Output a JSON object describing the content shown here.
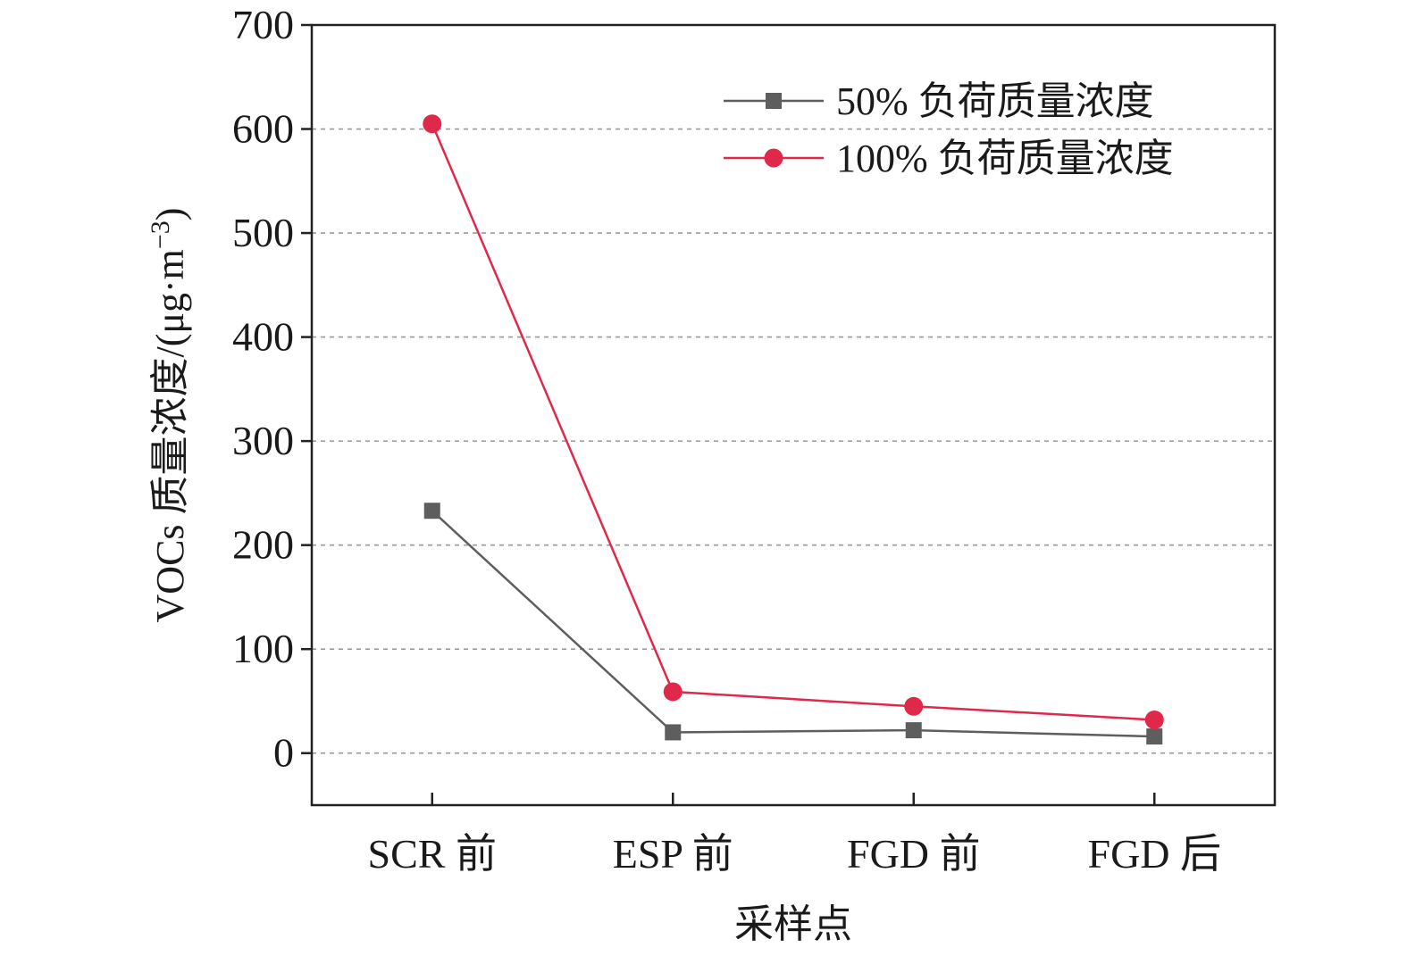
{
  "chart_data": {
    "type": "line",
    "categories": [
      "SCR 前",
      "ESP 前",
      "FGD 前",
      "FGD 后"
    ],
    "series": [
      {
        "name": "50% 负荷质量浓度",
        "color": "#5e5e5e",
        "marker": "square",
        "values": [
          233,
          20,
          22,
          16
        ]
      },
      {
        "name": "100% 负荷质量浓度",
        "color": "#e0294a",
        "marker": "circle",
        "values": [
          605,
          59,
          45,
          32
        ]
      }
    ],
    "xlabel": "采样点",
    "ylabel": "VOCs 质量浓度/(μg·m",
    "ylabel_sup": "−3",
    "ylabel_close": ")",
    "ylim": [
      -50,
      700
    ],
    "yticks": [
      0,
      100,
      200,
      300,
      400,
      500,
      600,
      700
    ],
    "grid": true,
    "legend_position": "top-right"
  }
}
